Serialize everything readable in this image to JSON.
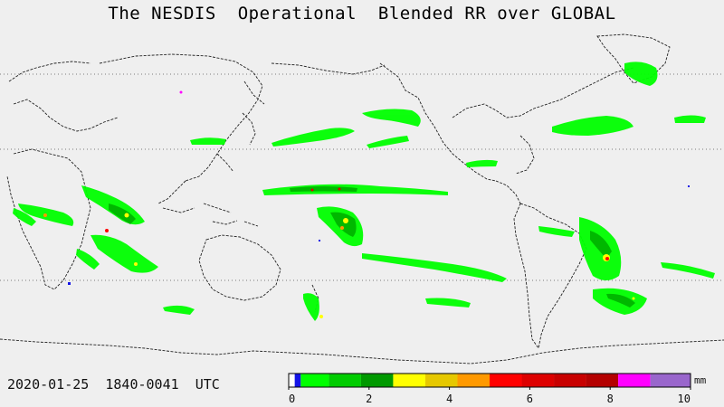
{
  "title": "The NESDIS  Operational  Blended RR over GLOBAL",
  "timestamp": "2020-01-25  1840-0041  UTC",
  "colorbar": {
    "unit": "mm",
    "min": 0,
    "max": 10,
    "ticks": [
      "0",
      "2",
      "4",
      "6",
      "8",
      "10"
    ],
    "bins": [
      {
        "from": 0,
        "to": 0.15,
        "color": "#ffffff"
      },
      {
        "from": 0.15,
        "to": 0.3,
        "color": "#1414e6"
      },
      {
        "from": 0.3,
        "to": 1.0,
        "color": "#00ff00"
      },
      {
        "from": 1.0,
        "to": 1.8,
        "color": "#00cc00"
      },
      {
        "from": 1.8,
        "to": 2.6,
        "color": "#009900"
      },
      {
        "from": 2.6,
        "to": 3.4,
        "color": "#ffff00"
      },
      {
        "from": 3.4,
        "to": 4.2,
        "color": "#e6c800"
      },
      {
        "from": 4.2,
        "to": 5.0,
        "color": "#ff9900"
      },
      {
        "from": 5.0,
        "to": 5.8,
        "color": "#ff0000"
      },
      {
        "from": 5.8,
        "to": 6.6,
        "color": "#dd0000"
      },
      {
        "from": 6.6,
        "to": 7.4,
        "color": "#c80000"
      },
      {
        "from": 7.4,
        "to": 8.2,
        "color": "#b40000"
      },
      {
        "from": 8.2,
        "to": 9.0,
        "color": "#ff00ff"
      },
      {
        "from": 9.0,
        "to": 10.0,
        "color": "#9966cc"
      }
    ]
  }
}
